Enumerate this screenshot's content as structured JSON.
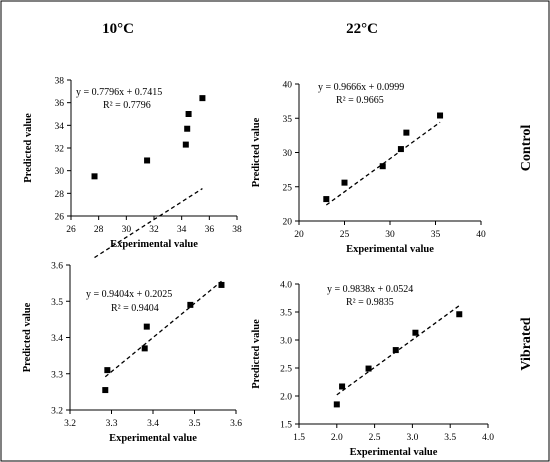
{
  "column_headers": [
    "10°C",
    "22°C"
  ],
  "row_headers": [
    "Control",
    "Vibrated"
  ],
  "chart_data": [
    {
      "type": "scatter",
      "title": "",
      "xlabel": "Experimental value",
      "ylabel": "Predicted value",
      "xlim": [
        26,
        38
      ],
      "ylim": [
        26,
        38
      ],
      "xticks": [
        "26",
        "28",
        "30",
        "32",
        "34",
        "36",
        "38"
      ],
      "yticks": [
        "26",
        "28",
        "30",
        "32",
        "34",
        "36",
        "38"
      ],
      "points": [
        {
          "x": 27.7,
          "y": 29.5
        },
        {
          "x": 31.5,
          "y": 30.9
        },
        {
          "x": 34.3,
          "y": 32.3
        },
        {
          "x": 34.4,
          "y": 33.7
        },
        {
          "x": 34.5,
          "y": 35.0
        },
        {
          "x": 35.5,
          "y": 36.4
        }
      ],
      "trendline": {
        "slope": 0.7796,
        "intercept": 0.7415,
        "x_range": [
          27.7,
          35.5
        ]
      },
      "equation": "y = 0.7796x + 0.7415",
      "r2_label": "R² = 0.7796"
    },
    {
      "type": "scatter",
      "title": "",
      "xlabel": "Experimental value",
      "ylabel": "Predicted value",
      "xlim": [
        20,
        40
      ],
      "ylim": [
        20,
        40
      ],
      "xticks": [
        "20",
        "25",
        "30",
        "35",
        "40"
      ],
      "yticks": [
        "20",
        "25",
        "30",
        "35",
        "40"
      ],
      "points": [
        {
          "x": 23.0,
          "y": 23.2
        },
        {
          "x": 25.0,
          "y": 25.6
        },
        {
          "x": 29.2,
          "y": 28.0
        },
        {
          "x": 31.2,
          "y": 30.5
        },
        {
          "x": 31.8,
          "y": 32.9
        },
        {
          "x": 35.5,
          "y": 35.4
        }
      ],
      "trendline": {
        "slope": 0.9666,
        "intercept": 0.0999,
        "x_range": [
          23.0,
          35.5
        ]
      },
      "equation": "y = 0.9666x + 0.0999",
      "r2_label": "R² = 0.9665"
    },
    {
      "type": "scatter",
      "title": "",
      "xlabel": "Experimental value",
      "ylabel": "Predicted value",
      "xlim": [
        3.2,
        3.6
      ],
      "ylim": [
        3.2,
        3.6
      ],
      "xticks": [
        "3.2",
        "3.3",
        "3.4",
        "3.5",
        "3.6"
      ],
      "yticks": [
        "3.2",
        "3.3",
        "3.4",
        "3.5",
        "3.6"
      ],
      "points": [
        {
          "x": 3.285,
          "y": 3.255
        },
        {
          "x": 3.29,
          "y": 3.31
        },
        {
          "x": 3.38,
          "y": 3.37
        },
        {
          "x": 3.385,
          "y": 3.43
        },
        {
          "x": 3.49,
          "y": 3.49
        },
        {
          "x": 3.565,
          "y": 3.545
        }
      ],
      "trendline": {
        "slope": 0.9404,
        "intercept": 0.2025,
        "x_range": [
          3.285,
          3.565
        ]
      },
      "equation": "y = 0.9404x + 0.2025",
      "r2_label": "R² = 0.9404"
    },
    {
      "type": "scatter",
      "title": "",
      "xlabel": "Experimental value",
      "ylabel": "Predicted value",
      "xlim": [
        1.5,
        4.0
      ],
      "ylim": [
        1.5,
        4.0
      ],
      "xticks": [
        "1.5",
        "2.0",
        "2.5",
        "3.0",
        "3.5",
        "4.0"
      ],
      "yticks": [
        "1.5",
        "2.0",
        "2.5",
        "3.0",
        "3.5",
        "4.0"
      ],
      "points": [
        {
          "x": 2.0,
          "y": 1.85
        },
        {
          "x": 2.07,
          "y": 2.17
        },
        {
          "x": 2.42,
          "y": 2.49
        },
        {
          "x": 2.78,
          "y": 2.82
        },
        {
          "x": 3.04,
          "y": 3.13
        },
        {
          "x": 3.62,
          "y": 3.46
        }
      ],
      "trendline": {
        "slope": 0.9838,
        "intercept": 0.0524,
        "x_range": [
          2.0,
          3.62
        ]
      },
      "equation": "y = 0.9838x + 0.0524",
      "r2_label": "R² = 0.9835"
    }
  ]
}
